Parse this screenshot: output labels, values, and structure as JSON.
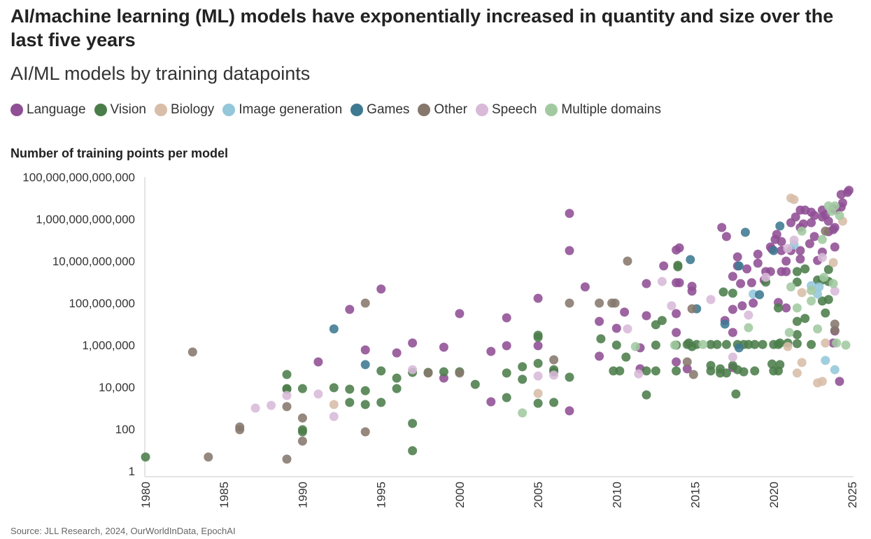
{
  "chart_data": {
    "type": "scatter",
    "title": "AI/machine learning (ML) models have exponentially increased in quantity and size over the last five years",
    "subtitle": "AI/ML models by training datapoints",
    "ylabel": "Number of training points per model",
    "xlabel": "",
    "source": "Source: JLL Research, 2024, OurWorldInData, EpochAI",
    "y_scale": "log10",
    "y_values_note": "point y values are log10(training points)",
    "xlim": [
      1980,
      2025
    ],
    "ylim_log10": [
      0,
      14
    ],
    "x_ticks": [
      "1980",
      "1985",
      "1990",
      "1995",
      "2000",
      "2005",
      "2010",
      "2015",
      "2020",
      "2025"
    ],
    "y_ticks": [
      "1",
      "100",
      "10,000",
      "1,000,000",
      "100,000,000",
      "10,000,000,000",
      "1,000,000,000,000",
      "100,000,000,000,000"
    ],
    "series": [
      {
        "name": "Language",
        "color": "#8f4f94",
        "points": [
          [
            1991,
            5.2
          ],
          [
            1993,
            7.7
          ],
          [
            1994,
            5.77
          ],
          [
            1995,
            8.67
          ],
          [
            1996,
            5.63
          ],
          [
            1997,
            6.1
          ],
          [
            1999,
            5.9
          ],
          [
            1999,
            4.43
          ],
          [
            2000,
            7.5
          ],
          [
            2002,
            5.7
          ],
          [
            2002,
            3.3
          ],
          [
            2003,
            7.3
          ],
          [
            2003,
            5.97
          ],
          [
            2005,
            8.23
          ],
          [
            2005,
            5.97
          ],
          [
            2007,
            12.27
          ],
          [
            2007,
            10.5
          ],
          [
            2007,
            2.87
          ],
          [
            2008,
            8.77
          ],
          [
            2008.9,
            7.13
          ],
          [
            2008.9,
            5.47
          ],
          [
            2010,
            6.8
          ],
          [
            2010.5,
            7.57
          ],
          [
            2011.5,
            5.87
          ],
          [
            2011.5,
            4.87
          ],
          [
            2011.9,
            8.93
          ],
          [
            2011.9,
            7.4
          ],
          [
            2013,
            9.77
          ],
          [
            2013.8,
            10.53
          ],
          [
            2013.8,
            8.97
          ],
          [
            2013.8,
            7.5
          ],
          [
            2013.8,
            6.6
          ],
          [
            2013.8,
            5.2
          ],
          [
            2014,
            10.63
          ],
          [
            2014,
            8.97
          ],
          [
            2014.5,
            4.87
          ],
          [
            2014.8,
            8.8
          ],
          [
            2014.8,
            8.57
          ],
          [
            2016.7,
            11.6
          ],
          [
            2017,
            11.17
          ],
          [
            2016.9,
            7.17
          ],
          [
            2017.4,
            9.27
          ],
          [
            2017.4,
            7.7
          ],
          [
            2017.4,
            6.6
          ],
          [
            2017.4,
            4.93
          ],
          [
            2017.7,
            9.77
          ],
          [
            2017.7,
            10.2
          ],
          [
            2017.9,
            8.93
          ],
          [
            2018,
            7.87
          ],
          [
            2018.3,
            9.63
          ],
          [
            2018.6,
            8.97
          ],
          [
            2018.7,
            8.0
          ],
          [
            2019,
            10.33
          ],
          [
            2019,
            9.9
          ],
          [
            2019.4,
            9.1
          ],
          [
            2019.5,
            9.5
          ],
          [
            2019.8,
            10.67
          ],
          [
            2019.9,
            10.57
          ],
          [
            2019.8,
            9.5
          ],
          [
            2020.2,
            11.27
          ],
          [
            2020.1,
            11.03
          ],
          [
            2020.3,
            8.03
          ],
          [
            2020.5,
            10.93
          ],
          [
            2020.5,
            10.5
          ],
          [
            2020.5,
            9.5
          ],
          [
            2020.8,
            10.0
          ],
          [
            2020.8,
            9.5
          ],
          [
            2020.8,
            7.77
          ],
          [
            2021.1,
            11.83
          ],
          [
            2021.1,
            10.5
          ],
          [
            2021.4,
            12.1
          ],
          [
            2021.7,
            12.43
          ],
          [
            2021.7,
            11.6
          ],
          [
            2021.7,
            10.5
          ],
          [
            2021.7,
            10.1
          ],
          [
            2021.9,
            11.77
          ],
          [
            2022,
            12.43
          ],
          [
            2022.4,
            12.33
          ],
          [
            2022.4,
            11.83
          ],
          [
            2022.3,
            10.83
          ],
          [
            2022.6,
            12.17
          ],
          [
            2022.6,
            11.17
          ],
          [
            2022.8,
            10.03
          ],
          [
            2023.1,
            12.43
          ],
          [
            2023.1,
            12.1
          ],
          [
            2023.1,
            10.43
          ],
          [
            2023.3,
            12.2
          ],
          [
            2023.5,
            11.9
          ],
          [
            2023.5,
            11.4
          ],
          [
            2023.8,
            12.5
          ],
          [
            2023.8,
            11.5
          ],
          [
            2023.8,
            6.1
          ],
          [
            2024,
            12.43
          ],
          [
            2023.9,
            11.6
          ],
          [
            2023.9,
            10.67
          ],
          [
            2023.9,
            6.67
          ],
          [
            2024.2,
            4.27
          ],
          [
            2024.3,
            13.17
          ],
          [
            2024.3,
            12.57
          ],
          [
            2024.4,
            12.77
          ],
          [
            2024.7,
            13.27
          ],
          [
            2024.8,
            13.37
          ]
        ]
      },
      {
        "name": "Vision",
        "color": "#4b7d4a",
        "points": [
          [
            1980,
            0.67
          ],
          [
            1989,
            4.6
          ],
          [
            1989,
            3.9
          ],
          [
            1989,
            3.93
          ],
          [
            1990,
            3.93
          ],
          [
            1990,
            1.87
          ],
          [
            1990,
            1.97
          ],
          [
            1992,
            3.97
          ],
          [
            1993,
            3.27
          ],
          [
            1993,
            3.9
          ],
          [
            1994,
            3.83
          ],
          [
            1994,
            3.17
          ],
          [
            1995,
            4.77
          ],
          [
            1995,
            3.27
          ],
          [
            1996,
            4.43
          ],
          [
            1996,
            3.93
          ],
          [
            1997,
            4.7
          ],
          [
            1997,
            2.27
          ],
          [
            1997,
            0.97
          ],
          [
            1998,
            4.7
          ],
          [
            1999,
            4.73
          ],
          [
            2000,
            4.73
          ],
          [
            2001,
            4.13
          ],
          [
            2003,
            4.67
          ],
          [
            2003,
            3.5
          ],
          [
            2004,
            4.97
          ],
          [
            2004,
            4.37
          ],
          [
            2005,
            6.47
          ],
          [
            2005,
            6.37
          ],
          [
            2005,
            5.13
          ],
          [
            2005,
            3.23
          ],
          [
            2006,
            4.83
          ],
          [
            2006,
            4.73
          ],
          [
            2006,
            3.27
          ],
          [
            2007,
            4.47
          ],
          [
            2009,
            6.3
          ],
          [
            2010,
            6.0
          ],
          [
            2009.8,
            4.77
          ],
          [
            2010.2,
            4.77
          ],
          [
            2010.6,
            5.43
          ],
          [
            2011.9,
            3.63
          ],
          [
            2011.9,
            4.77
          ],
          [
            2012.5,
            6.97
          ],
          [
            2012.5,
            6.0
          ],
          [
            2012.5,
            4.77
          ],
          [
            2012.9,
            7.17
          ],
          [
            2013.9,
            9.73
          ],
          [
            2013.9,
            9.8
          ],
          [
            2013.8,
            4.77
          ],
          [
            2013.8,
            6.0
          ],
          [
            2014.5,
            6.03
          ],
          [
            2014.6,
            6.1
          ],
          [
            2014.8,
            5.93
          ],
          [
            2015.1,
            6.03
          ],
          [
            2016,
            6.03
          ],
          [
            2016,
            4.77
          ],
          [
            2016,
            5.03
          ],
          [
            2016.4,
            6.03
          ],
          [
            2016.6,
            4.87
          ],
          [
            2016.6,
            4.67
          ],
          [
            2016.8,
            8.53
          ],
          [
            2017,
            6.03
          ],
          [
            2017,
            4.67
          ],
          [
            2017.4,
            8.47
          ],
          [
            2017.4,
            5.03
          ],
          [
            2017.6,
            3.67
          ],
          [
            2017.7,
            4.83
          ],
          [
            2017.7,
            6.03
          ],
          [
            2018.1,
            6.03
          ],
          [
            2018.1,
            4.73
          ],
          [
            2018.4,
            6.03
          ],
          [
            2018.8,
            6.03
          ],
          [
            2018.8,
            4.77
          ],
          [
            2019.3,
            6.03
          ],
          [
            2019.5,
            9.0
          ],
          [
            2020,
            6.03
          ],
          [
            2020,
            4.77
          ],
          [
            2019.9,
            5.1
          ],
          [
            2020.3,
            6.03
          ],
          [
            2020.3,
            4.77
          ],
          [
            2020.3,
            7.77
          ],
          [
            2020.4,
            6.1
          ],
          [
            2020.4,
            5.07
          ],
          [
            2020.9,
            6.1
          ],
          [
            2021.5,
            9.5
          ],
          [
            2021.5,
            9.0
          ],
          [
            2021.5,
            7.13
          ],
          [
            2021.5,
            6.5
          ],
          [
            2021.5,
            6.07
          ],
          [
            2022,
            9.63
          ],
          [
            2022,
            7.27
          ],
          [
            2022.4,
            6.03
          ],
          [
            2022.8,
            9.1
          ],
          [
            2023.1,
            9.1
          ],
          [
            2023.1,
            8.1
          ],
          [
            2023.3,
            7.53
          ],
          [
            2023.5,
            9.6
          ],
          [
            2023.5,
            9.03
          ],
          [
            2023.5,
            8.17
          ]
        ]
      },
      {
        "name": "Biology",
        "color": "#d8bda8",
        "points": [
          [
            1992,
            3.17
          ],
          [
            2005,
            3.7
          ],
          [
            2020.9,
            5.93
          ],
          [
            2021.1,
            13.0
          ],
          [
            2021.3,
            12.93
          ],
          [
            2021.5,
            4.67
          ],
          [
            2021.8,
            8.5
          ],
          [
            2021.8,
            5.17
          ],
          [
            2022.8,
            4.2
          ],
          [
            2023.1,
            4.27
          ],
          [
            2023.3,
            6.1
          ],
          [
            2023.8,
            9.93
          ],
          [
            2024.4,
            11.9
          ]
        ]
      },
      {
        "name": "Image generation",
        "color": "#93c7d9",
        "points": [
          [
            2018.7,
            8.43
          ],
          [
            2021.3,
            10.77
          ],
          [
            2022.4,
            8.83
          ],
          [
            2022.8,
            8.43
          ],
          [
            2022.9,
            8.77
          ],
          [
            2023.3,
            5.27
          ],
          [
            2023.9,
            4.83
          ]
        ]
      },
      {
        "name": "Games",
        "color": "#3e7991",
        "points": [
          [
            1992,
            6.77
          ],
          [
            1994,
            5.07
          ],
          [
            2014.7,
            10.07
          ],
          [
            2015.1,
            7.73
          ],
          [
            2016.9,
            7.0
          ],
          [
            2017.8,
            9.77
          ],
          [
            2017.8,
            5.87
          ],
          [
            2018.2,
            11.37
          ],
          [
            2019.1,
            8.4
          ],
          [
            2020,
            10.5
          ],
          [
            2020.4,
            11.67
          ]
        ]
      },
      {
        "name": "Other",
        "color": "#86776c",
        "points": [
          [
            1983,
            5.67
          ],
          [
            1984,
            0.67
          ],
          [
            1986,
            2.1
          ],
          [
            1986,
            1.97
          ],
          [
            1989,
            3.07
          ],
          [
            1989,
            0.57
          ],
          [
            1990,
            2.53
          ],
          [
            1990,
            1.43
          ],
          [
            1994,
            8.0
          ],
          [
            1994,
            1.87
          ],
          [
            1998,
            4.67
          ],
          [
            2000,
            4.67
          ],
          [
            2006,
            5.3
          ],
          [
            2007,
            8.0
          ],
          [
            2008.9,
            8.0
          ],
          [
            2009.7,
            8.0
          ],
          [
            2009.9,
            8.0
          ],
          [
            2010.7,
            10.0
          ],
          [
            2014.5,
            5.2
          ],
          [
            2014.8,
            7.73
          ],
          [
            2014.9,
            4.6
          ],
          [
            2023.3,
            11.43
          ],
          [
            2023.9,
            7.0
          ],
          [
            2023.9,
            6.7
          ]
        ]
      },
      {
        "name": "Speech",
        "color": "#d8bad8",
        "points": [
          [
            1987,
            3.0
          ],
          [
            1988,
            3.13
          ],
          [
            1989,
            3.6
          ],
          [
            1991,
            3.67
          ],
          [
            1992,
            2.6
          ],
          [
            1997,
            4.83
          ],
          [
            2005,
            4.53
          ],
          [
            2006,
            4.57
          ],
          [
            2010.7,
            6.77
          ],
          [
            2011.4,
            4.63
          ],
          [
            2012.9,
            9.03
          ],
          [
            2013.5,
            7.87
          ],
          [
            2016,
            8.17
          ],
          [
            2017.4,
            5.43
          ],
          [
            2018.4,
            7.43
          ],
          [
            2019.5,
            9.23
          ],
          [
            2020.9,
            10.6
          ],
          [
            2021.3,
            11.0
          ],
          [
            2023.1,
            10.17
          ],
          [
            2023.9,
            8.57
          ]
        ]
      },
      {
        "name": "Multiple domains",
        "color": "#a2caa0",
        "points": [
          [
            2004,
            2.77
          ],
          [
            2011.2,
            5.93
          ],
          [
            2013.7,
            6.0
          ],
          [
            2015.5,
            6.03
          ],
          [
            2018.4,
            6.83
          ],
          [
            2021,
            6.6
          ],
          [
            2021.1,
            8.77
          ],
          [
            2021.5,
            7.77
          ],
          [
            2021.8,
            11.43
          ],
          [
            2022.4,
            8.6
          ],
          [
            2022.4,
            8.1
          ],
          [
            2022.8,
            6.77
          ],
          [
            2023.1,
            11.03
          ],
          [
            2023.2,
            9.23
          ],
          [
            2023.5,
            12.63
          ],
          [
            2023.7,
            12.37
          ],
          [
            2023.8,
            8.93
          ],
          [
            2023.9,
            12.63
          ],
          [
            2024,
            6.1
          ],
          [
            2024.2,
            12.17
          ],
          [
            2024.6,
            6.0
          ]
        ]
      }
    ]
  }
}
